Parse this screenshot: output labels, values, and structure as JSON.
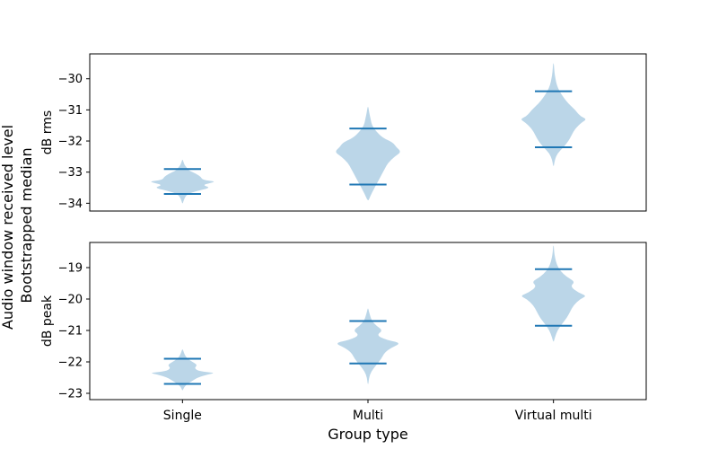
{
  "figure": {
    "suptitle_line1": "Audio window received level",
    "suptitle_line2": "Bootstrapped median",
    "xlabel": "Group type"
  },
  "chart_data": [
    {
      "type": "violin",
      "ylabel": "dB rms",
      "categories": [
        "Single",
        "Multi",
        "Virtual multi"
      ],
      "ylim": [
        -34.25,
        -29.2
      ],
      "yticks": [
        -34,
        -33,
        -32,
        -31,
        -30
      ],
      "show_xticklabels": false,
      "grid": false,
      "color": "#1f77b4",
      "fill_color": "#1f77b4",
      "fill_opacity": 0.3,
      "series": [
        {
          "category": "Single",
          "min": -33.7,
          "max": -32.9,
          "profile_y": [
            -34.0,
            -33.85,
            -33.7,
            -33.6,
            -33.5,
            -33.42,
            -33.35,
            -33.3,
            -33.25,
            -33.15,
            -33.05,
            -32.95,
            -32.85,
            -32.75,
            -32.6
          ],
          "profile_w": [
            0.01,
            0.05,
            0.15,
            0.45,
            0.85,
            0.6,
            0.82,
            1.0,
            0.6,
            0.55,
            0.4,
            0.2,
            0.12,
            0.05,
            0.01
          ]
        },
        {
          "category": "Multi",
          "min": -33.4,
          "max": -31.6,
          "profile_y": [
            -33.9,
            -33.7,
            -33.5,
            -33.3,
            -33.1,
            -32.9,
            -32.7,
            -32.5,
            -32.35,
            -32.2,
            -32.05,
            -31.9,
            -31.7,
            -31.5,
            -31.3,
            -31.1,
            -30.9
          ],
          "profile_w": [
            0.02,
            0.1,
            0.2,
            0.3,
            0.4,
            0.5,
            0.6,
            0.8,
            1.0,
            0.85,
            0.75,
            0.45,
            0.25,
            0.12,
            0.08,
            0.04,
            0.01
          ]
        },
        {
          "category": "Virtual multi",
          "min": -32.2,
          "max": -30.4,
          "profile_y": [
            -32.8,
            -32.6,
            -32.4,
            -32.2,
            -32.0,
            -31.8,
            -31.6,
            -31.4,
            -31.3,
            -31.2,
            -31.0,
            -30.8,
            -30.6,
            -30.4,
            -30.2,
            -30.0,
            -29.8,
            -29.5
          ],
          "profile_w": [
            0.01,
            0.04,
            0.12,
            0.3,
            0.45,
            0.55,
            0.65,
            0.85,
            1.0,
            0.8,
            0.65,
            0.45,
            0.3,
            0.18,
            0.1,
            0.06,
            0.03,
            0.01
          ]
        }
      ]
    },
    {
      "type": "violin",
      "ylabel": "dB peak",
      "categories": [
        "Single",
        "Multi",
        "Virtual multi"
      ],
      "ylim": [
        -23.2,
        -18.2
      ],
      "yticks": [
        -23,
        -22,
        -21,
        -20,
        -19
      ],
      "show_xticklabels": true,
      "grid": false,
      "color": "#1f77b4",
      "fill_color": "#1f77b4",
      "fill_opacity": 0.3,
      "series": [
        {
          "category": "Single",
          "min": -22.7,
          "max": -21.9,
          "profile_y": [
            -22.9,
            -22.8,
            -22.7,
            -22.6,
            -22.5,
            -22.4,
            -22.35,
            -22.3,
            -22.2,
            -22.1,
            -22.0,
            -21.9,
            -21.8,
            -21.7,
            -21.6
          ],
          "profile_w": [
            0.01,
            0.05,
            0.15,
            0.3,
            0.45,
            0.75,
            1.0,
            0.5,
            0.35,
            0.45,
            0.3,
            0.15,
            0.08,
            0.04,
            0.01
          ]
        },
        {
          "category": "Multi",
          "min": -22.05,
          "max": -20.7,
          "profile_y": [
            -22.7,
            -22.5,
            -22.3,
            -22.1,
            -21.9,
            -21.7,
            -21.55,
            -21.4,
            -21.3,
            -21.15,
            -21.0,
            -20.85,
            -20.7,
            -20.55,
            -20.4,
            -20.3
          ],
          "profile_w": [
            0.01,
            0.03,
            0.1,
            0.25,
            0.4,
            0.5,
            0.7,
            1.0,
            0.55,
            0.25,
            0.45,
            0.25,
            0.12,
            0.07,
            0.03,
            0.01
          ]
        },
        {
          "category": "Virtual multi",
          "min": -20.85,
          "max": -19.05,
          "profile_y": [
            -21.35,
            -21.2,
            -21.0,
            -20.8,
            -20.6,
            -20.4,
            -20.2,
            -20.0,
            -19.9,
            -19.8,
            -19.6,
            -19.45,
            -19.3,
            -19.1,
            -18.9,
            -18.7,
            -18.5,
            -18.3
          ],
          "profile_w": [
            0.01,
            0.05,
            0.12,
            0.25,
            0.4,
            0.5,
            0.6,
            0.8,
            1.0,
            0.75,
            0.5,
            0.65,
            0.4,
            0.2,
            0.1,
            0.05,
            0.02,
            0.01
          ]
        }
      ]
    }
  ]
}
